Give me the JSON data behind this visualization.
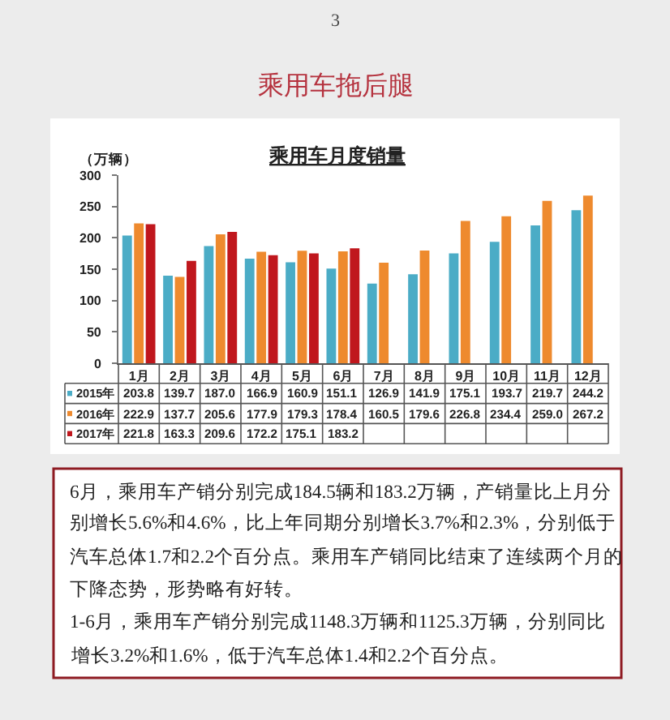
{
  "chart_data": {
    "type": "bar",
    "title": "乘用车拖后腿",
    "subtitle": "乘用车月度销量",
    "ylabel": "（万辆）",
    "categories": [
      "1月",
      "2月",
      "3月",
      "4月",
      "5月",
      "6月",
      "7月",
      "8月",
      "9月",
      "10月",
      "11月",
      "12月"
    ],
    "series": [
      {
        "name": "2015年",
        "color": "#4bacc6",
        "values": [
          203.8,
          139.7,
          187.0,
          166.9,
          160.9,
          151.1,
          126.9,
          141.9,
          175.1,
          193.7,
          219.7,
          244.2
        ],
        "value_labels": [
          "203.8",
          "139.7",
          "187.0",
          "166.9",
          "160.9",
          "151.1",
          "126.9",
          "141.9",
          "175.1",
          "193.7",
          "219.7",
          "244.2"
        ]
      },
      {
        "name": "2016年",
        "color": "#ee8a2e",
        "values": [
          222.9,
          137.7,
          205.6,
          177.9,
          179.3,
          178.4,
          160.5,
          179.6,
          226.8,
          234.4,
          259.0,
          267.2
        ],
        "value_labels": [
          "222.9",
          "137.7",
          "205.6",
          "177.9",
          "179.3",
          "178.4",
          "160.5",
          "179.6",
          "226.8",
          "234.4",
          "259.0",
          "267.2"
        ]
      },
      {
        "name": "2017年",
        "color": "#c0171d",
        "values": [
          221.8,
          163.3,
          209.6,
          172.2,
          175.1,
          183.2,
          null,
          null,
          null,
          null,
          null,
          null
        ],
        "value_labels": [
          "221.8",
          "163.3",
          "209.6",
          "172.2",
          "175.1",
          "183.2",
          null,
          null,
          null,
          null,
          null,
          null
        ]
      }
    ],
    "ylim": [
      0,
      300
    ],
    "yticks": [
      0,
      50,
      100,
      150,
      200,
      250,
      300
    ],
    "grid": false,
    "legend": "bottom left",
    "annotations": [
      "3",
      "6月，乘用车产销分别完成184.5辆和183.2万辆，产销量比上月分别增长5.6%和4.6%，比上年同期分别增长3.7%和2.3%，分别低于汽车总体1.7和2.2个百分点。乘用车产销同比结束了连续两个月的下降态势，形势略有好转。",
      "1-6月，乘用车产销分别完成1148.3万辆和1125.3万辆，分别同比增长3.2%和1.6%，低于汽车总体1.4和2.2个百分点。"
    ]
  }
}
